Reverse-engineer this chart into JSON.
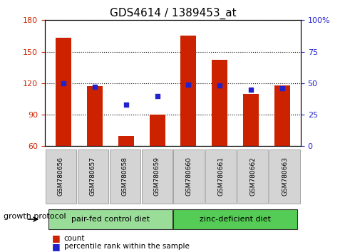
{
  "title": "GDS4614 / 1389453_at",
  "samples": [
    "GSM780656",
    "GSM780657",
    "GSM780658",
    "GSM780659",
    "GSM780660",
    "GSM780661",
    "GSM780662",
    "GSM780663"
  ],
  "counts": [
    163,
    117,
    70,
    90,
    165,
    142,
    110,
    118
  ],
  "percentiles": [
    50,
    47,
    33,
    40,
    49,
    48,
    45,
    46
  ],
  "ylim_left": [
    60,
    180
  ],
  "yticks_left": [
    60,
    90,
    120,
    150,
    180
  ],
  "ylim_right": [
    0,
    100
  ],
  "yticks_right": [
    0,
    25,
    50,
    75,
    100
  ],
  "bar_color": "#cc2200",
  "dot_color": "#2222cc",
  "groups": [
    {
      "label": "pair-fed control diet",
      "indices": [
        0,
        1,
        2,
        3
      ],
      "color": "#99dd99"
    },
    {
      "label": "zinc-deficient diet",
      "indices": [
        4,
        5,
        6,
        7
      ],
      "color": "#55cc55"
    }
  ],
  "group_label": "growth protocol",
  "legend_count_label": "count",
  "legend_percentile_label": "percentile rank within the sample",
  "bar_width": 0.5,
  "base_value": 60
}
